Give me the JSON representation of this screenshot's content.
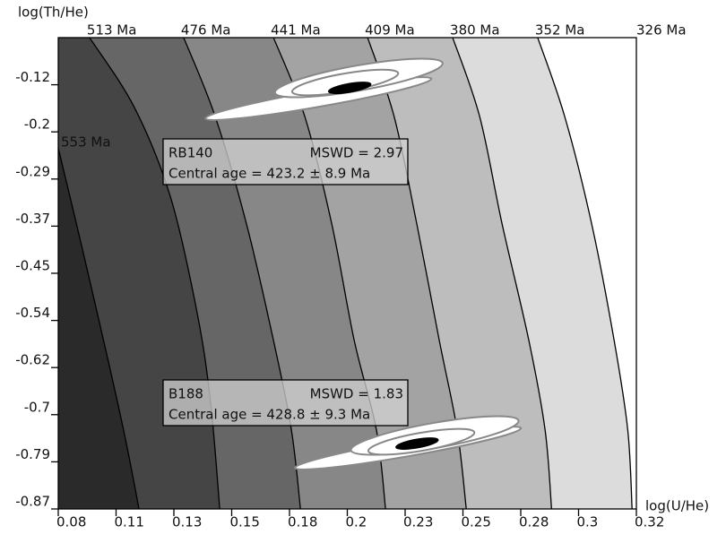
{
  "chart_data": {
    "type": "contour",
    "x_label": "log(U/He)",
    "y_label": "log(Th/He)",
    "xlim": [
      0.082,
      0.324
    ],
    "ylim": [
      -0.87,
      -0.0367
    ],
    "xticks": [
      {
        "value": 0.082,
        "label": "0.08"
      },
      {
        "value": 0.1062,
        "label": "0.11"
      },
      {
        "value": 0.1304,
        "label": "0.13"
      },
      {
        "value": 0.1546,
        "label": "0.15"
      },
      {
        "value": 0.1788,
        "label": "0.18"
      },
      {
        "value": 0.203,
        "label": "0.2"
      },
      {
        "value": 0.2272,
        "label": "0.23"
      },
      {
        "value": 0.2514,
        "label": "0.25"
      },
      {
        "value": 0.2756,
        "label": "0.28"
      },
      {
        "value": 0.2998,
        "label": "0.3"
      },
      {
        "value": 0.324,
        "label": "0.32"
      }
    ],
    "yticks": [
      -0.87,
      {
        "value": -0.7867,
        "label": "-0.79"
      },
      {
        "value": -0.7033,
        "label": "-0.7"
      },
      -0.62,
      {
        "value": -0.5367,
        "label": "-0.54"
      },
      {
        "value": -0.4533,
        "label": "-0.45"
      },
      -0.37,
      {
        "value": -0.2867,
        "label": "-0.29"
      },
      {
        "value": -0.2033,
        "label": "-0.2"
      },
      -0.12
    ],
    "band_colors": [
      "#2a2a2a",
      "#454545",
      "#666666",
      "#878787",
      "#a3a3a3",
      "#bdbdbd",
      "#dcdcdc",
      "#ffffff"
    ],
    "contours": [
      {
        "label": "553 Ma",
        "x": [
          0.082,
          0.0914,
          0.1027,
          0.1101,
          0.1158
        ],
        "y": [
          -0.2316,
          -0.398,
          -0.604,
          -0.746,
          -0.87
        ]
      },
      {
        "label": "513 Ma",
        "x": [
          0.0951,
          0.1139,
          0.129,
          0.1402,
          0.1458,
          0.1496
        ],
        "y": [
          -0.0367,
          -0.1604,
          -0.3188,
          -0.5247,
          -0.6831,
          -0.87
        ]
      },
      {
        "label": "476 Ma",
        "x": [
          0.1345,
          0.1477,
          0.1608,
          0.1721,
          0.1796,
          0.1834
        ],
        "y": [
          -0.0367,
          -0.1762,
          -0.3663,
          -0.5722,
          -0.7306,
          -0.87
        ]
      },
      {
        "label": "441 Ma",
        "x": [
          0.1721,
          0.1852,
          0.1965,
          0.2059,
          0.2152,
          0.219
        ],
        "y": [
          -0.0367,
          -0.1762,
          -0.3663,
          -0.5722,
          -0.7306,
          -0.87
        ]
      },
      {
        "label": "409 Ma",
        "x": [
          0.2115,
          0.2226,
          0.2321,
          0.2415,
          0.249,
          0.2528
        ],
        "y": [
          -0.0367,
          -0.1762,
          -0.3663,
          -0.5722,
          -0.7306,
          -0.87
        ]
      },
      {
        "label": "380 Ma",
        "x": [
          0.2471,
          0.2584,
          0.2678,
          0.279,
          0.2858,
          0.2885
        ],
        "y": [
          -0.0367,
          -0.1762,
          -0.3663,
          -0.5722,
          -0.7306,
          -0.87
        ]
      },
      {
        "label": "352 Ma",
        "x": [
          0.2827,
          0.294,
          0.3053,
          0.3147,
          0.3204,
          0.3222
        ],
        "y": [
          -0.0367,
          -0.1762,
          -0.3663,
          -0.5722,
          -0.7306,
          -0.87
        ]
      }
    ],
    "edge_label": "326 Ma",
    "samples": [
      {
        "name": "RB140",
        "mswd_label": "MSWD = 2.97",
        "central_age_label": "Central age = 423.2 ± 8.9 Ma",
        "ellipses": [
          {
            "x": 0.1909,
            "y": -0.1445,
            "sx": 0.0473,
            "sy": 0.0379,
            "rho": 0.923
          },
          {
            "x": 0.2078,
            "y": -0.108,
            "sx": 0.0351,
            "sy": 0.0341,
            "rho": 0.75
          },
          {
            "x": 0.2021,
            "y": -0.116,
            "sx": 0.0222,
            "sy": 0.0227,
            "rho": 0.706
          }
        ],
        "central": {
          "x": 0.204,
          "y": -0.1255,
          "sx": 0.0089,
          "sy": 0.0102,
          "rho": 0.618
        }
      },
      {
        "name": "B188",
        "mswd_label": "MSWD = 1.83",
        "central_age_label": "Central age = 428.8 ± 9.3 Ma",
        "ellipses": [
          {
            "x": 0.2284,
            "y": -0.7623,
            "sx": 0.0473,
            "sy": 0.0379,
            "rho": 0.923
          },
          {
            "x": 0.2396,
            "y": -0.7401,
            "sx": 0.0351,
            "sy": 0.0341,
            "rho": 0.75
          },
          {
            "x": 0.234,
            "y": -0.7512,
            "sx": 0.0222,
            "sy": 0.0227,
            "rho": 0.706
          }
        ],
        "central": {
          "x": 0.2322,
          "y": -0.7544,
          "sx": 0.0089,
          "sy": 0.0102,
          "rho": 0.618
        }
      }
    ]
  }
}
